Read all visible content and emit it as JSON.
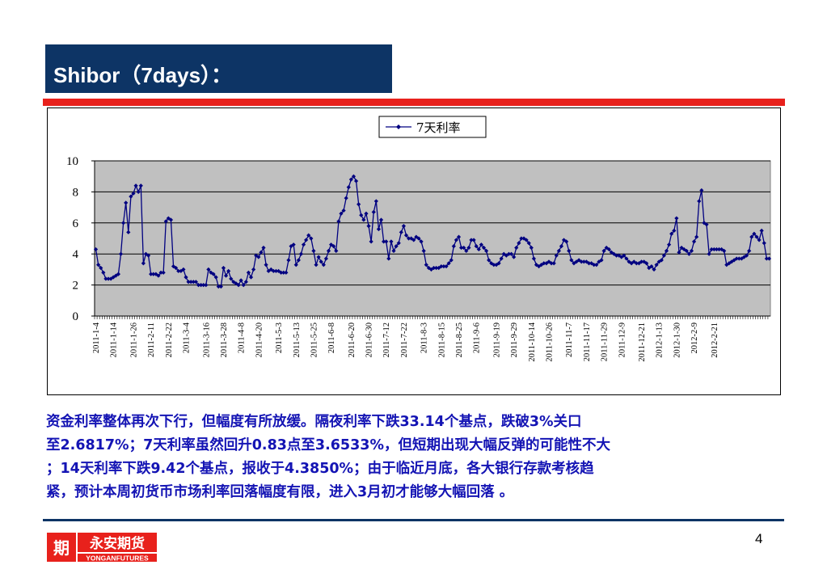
{
  "slide": {
    "title": "Shibor（7days）：",
    "paragraph_lines": [
      "资金利率整体再次下行，但幅度有所放缓。隔夜利率下跌33.14个基点，跌破3%关口",
      "至2.6817%；7天利率虽然回升0.83点至3.6533%，但短期出现大幅反弹的可能性不大",
      "；14天利率下跌9.42个基点，报收于4.3850%；由于临近月底，各大银行存款考核趋",
      "紧，预计本周初货币市场利率回落幅度有限，进入3月初才能够大幅回落 。"
    ],
    "page_number": "4",
    "logo": {
      "chinese": "永安期货",
      "english": "YONGANFUTURES",
      "mark": "期"
    },
    "colors": {
      "title_bg": "#0d3465",
      "accent_red": "#e8211c",
      "text_blue": "#1414b4",
      "series": "#000080",
      "plot_bg": "#c0c0c0"
    }
  },
  "chart_data": {
    "type": "line",
    "title": "",
    "xlabel": "",
    "ylabel": "",
    "ylim": [
      0,
      10
    ],
    "yticks": [
      0,
      2,
      4,
      6,
      8,
      10
    ],
    "grid": true,
    "legend": "top-center",
    "x_tick_labels": [
      "2011-1-4",
      "2011-1-14",
      "2011-1-26",
      "2011-2-11",
      "2011-2-22",
      "2011-3-4",
      "2011-3-16",
      "2011-3-28",
      "2011-4-8",
      "2011-4-20",
      "2011-5-3",
      "2011-5-13",
      "2011-5-25",
      "2011-6-8",
      "2011-6-20",
      "2011-6-30",
      "2011-7-12",
      "2011-7-22",
      "2011-8-3",
      "2011-8-15",
      "2011-8-25",
      "2011-9-6",
      "2011-9-19",
      "2011-9-29",
      "2011-10-14",
      "2011-10-26",
      "2011-11-7",
      "2011-11-17",
      "2011-11-29",
      "2011-12-9",
      "2011-12-21",
      "2012-1-13",
      "2012-1-30",
      "2012-2-9",
      "2012-2-21"
    ],
    "series": [
      {
        "name": "7天利率",
        "values": [
          4.3,
          3.3,
          3.1,
          2.8,
          2.4,
          2.4,
          2.4,
          2.5,
          2.6,
          2.7,
          4.0,
          6.0,
          7.3,
          5.4,
          7.7,
          7.9,
          8.4,
          8.0,
          8.4,
          3.4,
          4.0,
          3.9,
          2.7,
          2.7,
          2.7,
          2.6,
          2.8,
          2.8,
          6.1,
          6.3,
          6.2,
          3.2,
          3.1,
          2.9,
          2.9,
          3.0,
          2.5,
          2.2,
          2.2,
          2.2,
          2.2,
          2.0,
          2.0,
          2.0,
          2.0,
          3.0,
          2.8,
          2.7,
          2.5,
          1.9,
          1.9,
          3.1,
          2.6,
          2.9,
          2.4,
          2.2,
          2.1,
          2.0,
          2.3,
          2.0,
          2.2,
          2.8,
          2.5,
          3.0,
          3.9,
          3.8,
          4.1,
          4.4,
          3.3,
          2.9,
          3.0,
          2.9,
          2.9,
          2.9,
          2.8,
          2.8,
          2.8,
          3.6,
          4.5,
          4.6,
          3.3,
          3.6,
          4.0,
          4.6,
          4.9,
          5.2,
          5.0,
          4.2,
          3.3,
          3.8,
          3.5,
          3.3,
          3.7,
          4.2,
          4.6,
          4.5,
          4.2,
          6.1,
          6.6,
          6.8,
          7.6,
          8.3,
          8.8,
          9.0,
          8.7,
          7.2,
          6.5,
          6.2,
          6.6,
          5.8,
          4.8,
          6.7,
          7.4,
          5.6,
          6.2,
          4.8,
          4.8,
          3.7,
          4.8,
          4.2,
          4.5,
          4.7,
          5.4,
          5.8,
          5.2,
          5.0,
          5.0,
          4.9,
          5.1,
          5.0,
          4.8,
          4.2,
          3.3,
          3.1,
          3.0,
          3.1,
          3.1,
          3.1,
          3.2,
          3.2,
          3.2,
          3.4,
          3.6,
          4.5,
          4.9,
          5.1,
          4.4,
          4.4,
          4.2,
          4.4,
          4.9,
          4.9,
          4.5,
          4.3,
          4.6,
          4.4,
          4.2,
          3.6,
          3.4,
          3.3,
          3.3,
          3.4,
          3.7,
          4.0,
          3.9,
          4.0,
          4.0,
          3.8,
          4.4,
          4.7,
          5.0,
          5.0,
          4.9,
          4.7,
          4.4,
          3.7,
          3.3,
          3.2,
          3.3,
          3.4,
          3.4,
          3.5,
          3.4,
          3.4,
          3.9,
          4.2,
          4.5,
          4.9,
          4.8,
          4.2,
          3.6,
          3.4,
          3.5,
          3.6,
          3.5,
          3.5,
          3.5,
          3.4,
          3.4,
          3.3,
          3.3,
          3.5,
          3.6,
          4.2,
          4.4,
          4.3,
          4.1,
          4.0,
          3.9,
          3.9,
          3.8,
          3.9,
          3.7,
          3.5,
          3.4,
          3.5,
          3.4,
          3.4,
          3.5,
          3.5,
          3.4,
          3.1,
          3.2,
          3.0,
          3.3,
          3.5,
          3.6,
          3.9,
          4.2,
          4.6,
          5.3,
          5.5,
          6.3,
          4.1,
          4.4,
          4.3,
          4.2,
          4.0,
          4.2,
          4.8,
          5.1,
          7.4,
          8.1,
          6.0,
          5.9,
          4.0,
          4.3,
          4.3,
          4.3,
          4.3,
          4.3,
          4.2,
          3.3,
          3.4,
          3.5,
          3.6,
          3.7,
          3.7,
          3.7,
          3.8,
          3.9,
          4.2,
          5.1,
          5.3,
          5.1,
          4.9,
          5.5,
          4.7,
          3.7,
          3.7
        ]
      }
    ]
  }
}
